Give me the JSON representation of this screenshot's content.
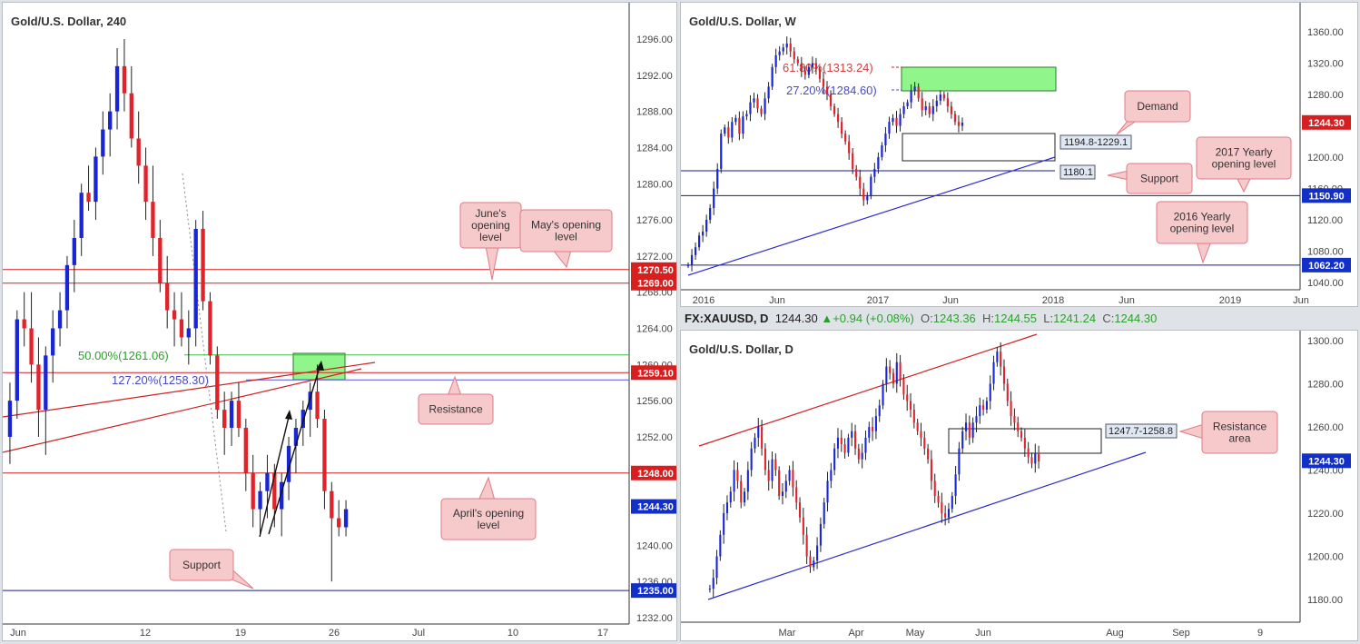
{
  "colors": {
    "bull": "#1826d6",
    "bear": "#e0232a",
    "support": "#1a1a8c",
    "resistance": "#d02020",
    "zone_green": "#90f58a",
    "callout": "#f6c9cb",
    "callout_border": "#e07a86"
  },
  "header_bar": {
    "symbol": "FX:XAUUSD, D",
    "price": "1244.30",
    "change": "+0.94 (+0.08%)",
    "o_label": "O:",
    "o": "1243.36",
    "h_label": "H:",
    "h": "1244.55",
    "l_label": "L:",
    "l": "1241.24",
    "c_label": "C:",
    "c": "1244.30"
  },
  "chart_data": [
    {
      "type": "candlestick",
      "title": "Gold/U.S. Dollar, 240",
      "ylim": [
        1232,
        1300
      ],
      "y_ticks": [
        "1296.00",
        "1292.00",
        "1288.00",
        "1284.00",
        "1280.00",
        "1276.00",
        "1272.00",
        "1268.00",
        "1264.00",
        "1260.00",
        "1256.00",
        "1252.00",
        "1248.00",
        "1244.00",
        "1240.00",
        "1236.00",
        "1232.00"
      ],
      "x_ticks": [
        "Jun",
        "12",
        "19",
        "26",
        "Jul",
        "10",
        "17"
      ],
      "levels": [
        {
          "value": 1270.5,
          "label": "1270.50",
          "kind": "resistance"
        },
        {
          "value": 1269.0,
          "label": "1269.00",
          "kind": "resistance"
        },
        {
          "value": 1259.1,
          "label": "1259.10",
          "kind": "resistance"
        },
        {
          "value": 1248.0,
          "label": "1248.00",
          "kind": "resistance"
        },
        {
          "value": 1235.0,
          "label": "1235.00",
          "kind": "support"
        }
      ],
      "last_price": "1244.30",
      "fib_labels": [
        {
          "text": "50.00%(1261.06)",
          "color": "green"
        },
        {
          "text": "127.20%(1258.30)",
          "color": "blue"
        }
      ],
      "annotations": [
        "June's opening level",
        "May's opening level",
        "Resistance",
        "April's opening level",
        "Support"
      ],
      "ohlc": [
        [
          1252,
          1258,
          1249,
          1256
        ],
        [
          1256,
          1266,
          1254,
          1265
        ],
        [
          1265,
          1268,
          1262,
          1264
        ],
        [
          1264,
          1268,
          1258,
          1260
        ],
        [
          1260,
          1263,
          1252,
          1255
        ],
        [
          1255,
          1262,
          1250,
          1261
        ],
        [
          1261,
          1266,
          1258,
          1264
        ],
        [
          1264,
          1268,
          1262,
          1266
        ],
        [
          1266,
          1272,
          1264,
          1271
        ],
        [
          1271,
          1276,
          1268,
          1274
        ],
        [
          1274,
          1280,
          1272,
          1279
        ],
        [
          1279,
          1282,
          1277,
          1278
        ],
        [
          1278,
          1284,
          1276,
          1283
        ],
        [
          1283,
          1288,
          1281,
          1286
        ],
        [
          1286,
          1290,
          1283,
          1288
        ],
        [
          1288,
          1295,
          1286,
          1293
        ],
        [
          1293,
          1296,
          1288,
          1290
        ],
        [
          1290,
          1293,
          1284,
          1285
        ],
        [
          1285,
          1288,
          1280,
          1282
        ],
        [
          1282,
          1284,
          1276,
          1278
        ],
        [
          1278,
          1282,
          1272,
          1274
        ],
        [
          1274,
          1276,
          1268,
          1269
        ],
        [
          1269,
          1272,
          1264,
          1266
        ],
        [
          1266,
          1268,
          1262,
          1265
        ],
        [
          1265,
          1268,
          1262,
          1263
        ],
        [
          1263,
          1266,
          1260,
          1264
        ],
        [
          1264,
          1276,
          1262,
          1275
        ],
        [
          1275,
          1277,
          1266,
          1267
        ],
        [
          1267,
          1268,
          1260,
          1261
        ],
        [
          1261,
          1262,
          1254,
          1255
        ],
        [
          1255,
          1257,
          1250,
          1253
        ],
        [
          1253,
          1257,
          1251,
          1256
        ],
        [
          1256,
          1258,
          1252,
          1253
        ],
        [
          1253,
          1254,
          1246,
          1248
        ],
        [
          1248,
          1250,
          1242,
          1244
        ],
        [
          1244,
          1247,
          1241,
          1246
        ],
        [
          1246,
          1250,
          1243,
          1248
        ],
        [
          1248,
          1249,
          1242,
          1244
        ],
        [
          1244,
          1248,
          1241,
          1247
        ],
        [
          1247,
          1252,
          1245,
          1251
        ],
        [
          1251,
          1254,
          1248,
          1253
        ],
        [
          1253,
          1256,
          1251,
          1255
        ],
        [
          1255,
          1258,
          1252,
          1257
        ],
        [
          1257,
          1260,
          1253,
          1254
        ],
        [
          1254,
          1255,
          1244,
          1246
        ],
        [
          1246,
          1247,
          1236,
          1243
        ],
        [
          1243,
          1245,
          1241,
          1242
        ],
        [
          1242,
          1245,
          1241,
          1244
        ]
      ]
    },
    {
      "type": "candlestick",
      "title": "Gold/U.S. Dollar, W",
      "ylim": [
        1020,
        1380
      ],
      "y_ticks": [
        "1360.00",
        "1320.00",
        "1280.00",
        "1240.00",
        "1200.00",
        "1160.00",
        "1120.00",
        "1080.00",
        "1040.00"
      ],
      "x_ticks": [
        "2016",
        "Jun",
        "2017",
        "Jun",
        "2018",
        "Jun",
        "2019",
        "Jun"
      ],
      "levels": [
        {
          "value": 1150.9,
          "label": "1150.90",
          "kind": "support"
        },
        {
          "value": 1062.2,
          "label": "1062.20",
          "kind": "support"
        }
      ],
      "last_price": "1244.30",
      "fib_labels": [
        {
          "text": "61.80%(1313.24)",
          "color": "red"
        },
        {
          "text": "27.20%(1284.60)",
          "color": "blue"
        }
      ],
      "zone_labels": [
        "1194.8-1229.1",
        "1180.1"
      ],
      "annotations": [
        "Demand",
        "Support",
        "2017 Yearly opening level",
        "2016 Yearly opening level"
      ],
      "closes": [
        1062,
        1075,
        1085,
        1100,
        1105,
        1120,
        1135,
        1160,
        1185,
        1230,
        1238,
        1225,
        1245,
        1250,
        1230,
        1252,
        1255,
        1270,
        1275,
        1262,
        1255,
        1275,
        1290,
        1315,
        1330,
        1335,
        1340,
        1345,
        1335,
        1325,
        1320,
        1310,
        1305,
        1315,
        1320,
        1312,
        1300,
        1290,
        1280,
        1265,
        1255,
        1245,
        1230,
        1220,
        1205,
        1185,
        1175,
        1160,
        1145,
        1150,
        1175,
        1185,
        1200,
        1215,
        1230,
        1245,
        1250,
        1240,
        1255,
        1265,
        1270,
        1285,
        1290,
        1275,
        1260,
        1265,
        1255,
        1265,
        1272,
        1280,
        1275,
        1265,
        1255,
        1245,
        1240,
        1244
      ]
    },
    {
      "type": "candlestick",
      "title": "Gold/U.S. Dollar, D",
      "ylim": [
        1165,
        1305
      ],
      "y_ticks": [
        "1300.00",
        "1280.00",
        "1260.00",
        "1240.00",
        "1220.00",
        "1200.00",
        "1180.00"
      ],
      "x_ticks": [
        "Mar",
        "Apr",
        "May",
        "Jun",
        "Aug",
        "Sep",
        "9"
      ],
      "last_price": "1244.30",
      "zone_labels": [
        "1247.7-1258.8"
      ],
      "annotations": [
        "Resistance area"
      ],
      "closes": [
        1185,
        1190,
        1200,
        1210,
        1220,
        1225,
        1230,
        1240,
        1235,
        1225,
        1230,
        1240,
        1250,
        1255,
        1260,
        1250,
        1240,
        1235,
        1245,
        1240,
        1228,
        1230,
        1235,
        1240,
        1232,
        1225,
        1218,
        1210,
        1200,
        1195,
        1198,
        1205,
        1215,
        1225,
        1235,
        1240,
        1250,
        1255,
        1252,
        1248,
        1255,
        1258,
        1250,
        1245,
        1248,
        1255,
        1260,
        1258,
        1265,
        1270,
        1280,
        1288,
        1285,
        1280,
        1290,
        1282,
        1275,
        1272,
        1268,
        1262,
        1258,
        1255,
        1250,
        1245,
        1235,
        1228,
        1225,
        1220,
        1218,
        1222,
        1228,
        1238,
        1250,
        1258,
        1262,
        1255,
        1262,
        1265,
        1270,
        1268,
        1272,
        1280,
        1290,
        1295,
        1288,
        1280,
        1272,
        1265,
        1262,
        1258,
        1255,
        1250,
        1246,
        1243,
        1248,
        1244
      ]
    }
  ]
}
